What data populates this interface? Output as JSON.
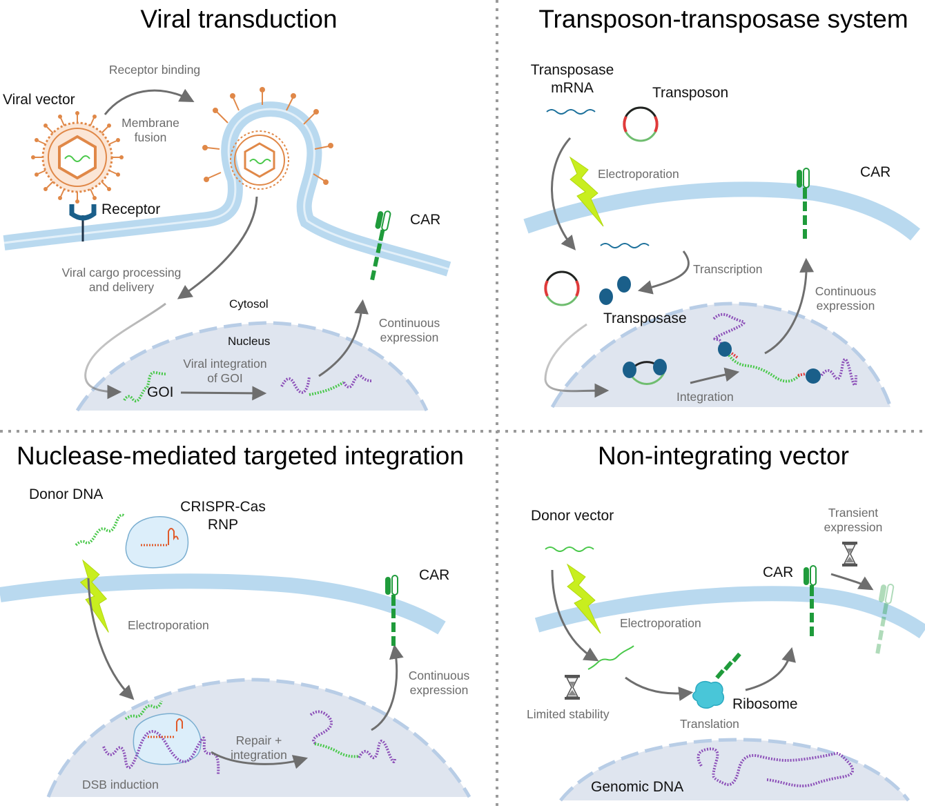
{
  "colors": {
    "membrane": "#b9d9ef",
    "nucleus": "#dfe5ef",
    "nucleus_edge": "#b8cde6",
    "arrow": "#6e6e6e",
    "dna_green": "#49c84a",
    "dna_purple": "#8c4fb8",
    "car_green": "#1f9b3b",
    "bolt": "#c8ee1f",
    "virus_orange": "#e08848",
    "transposase": "#1a5f8a",
    "ribosome": "#49c6d8"
  },
  "icons": [
    "virus-icon",
    "receptor-icon",
    "lightning-bolt-icon",
    "plasmid-icon",
    "hourglass-icon",
    "ribosome-icon",
    "car-receptor-icon",
    "crispr-rnp-icon"
  ],
  "panels": {
    "viral": {
      "title": "Viral transduction",
      "viral_vector": "Viral vector",
      "receptor_binding": "Receptor binding",
      "membrane_fusion_1": "Membrane",
      "membrane_fusion_2": "fusion",
      "receptor": "Receptor",
      "car": "CAR",
      "cargo_1": "Viral cargo processing",
      "cargo_2": "and delivery",
      "cytosol": "Cytosol",
      "nucleus": "Nucleus",
      "continuous_1": "Continuous",
      "continuous_2": "expression",
      "integration_1": "Viral integration",
      "integration_2": "of GOI",
      "goi": "GOI"
    },
    "transposon": {
      "title": "Transposon-transposase system",
      "mrna_1": "Transposase",
      "mrna_2": "mRNA",
      "transposon": "Transposon",
      "electroporation": "Electroporation",
      "car": "CAR",
      "transcription": "Transcription",
      "continuous_1": "Continuous",
      "continuous_2": "expression",
      "transposase": "Transposase",
      "integration": "Integration"
    },
    "nuclease": {
      "title": "Nuclease-mediated targeted integration",
      "donor_dna": "Donor DNA",
      "crispr_1": "CRISPR-Cas",
      "crispr_2": "RNP",
      "car": "CAR",
      "electroporation": "Electroporation",
      "continuous_1": "Continuous",
      "continuous_2": "expression",
      "repair_1": "Repair +",
      "repair_2": "integration",
      "dsb": "DSB induction"
    },
    "nonint": {
      "title": "Non-integrating vector",
      "donor_vector": "Donor vector",
      "transient_1": "Transient",
      "transient_2": "expression",
      "car": "CAR",
      "electroporation": "Electroporation",
      "limited": "Limited stability",
      "ribosome": "Ribosome",
      "translation": "Translation",
      "genomic": "Genomic DNA"
    }
  }
}
